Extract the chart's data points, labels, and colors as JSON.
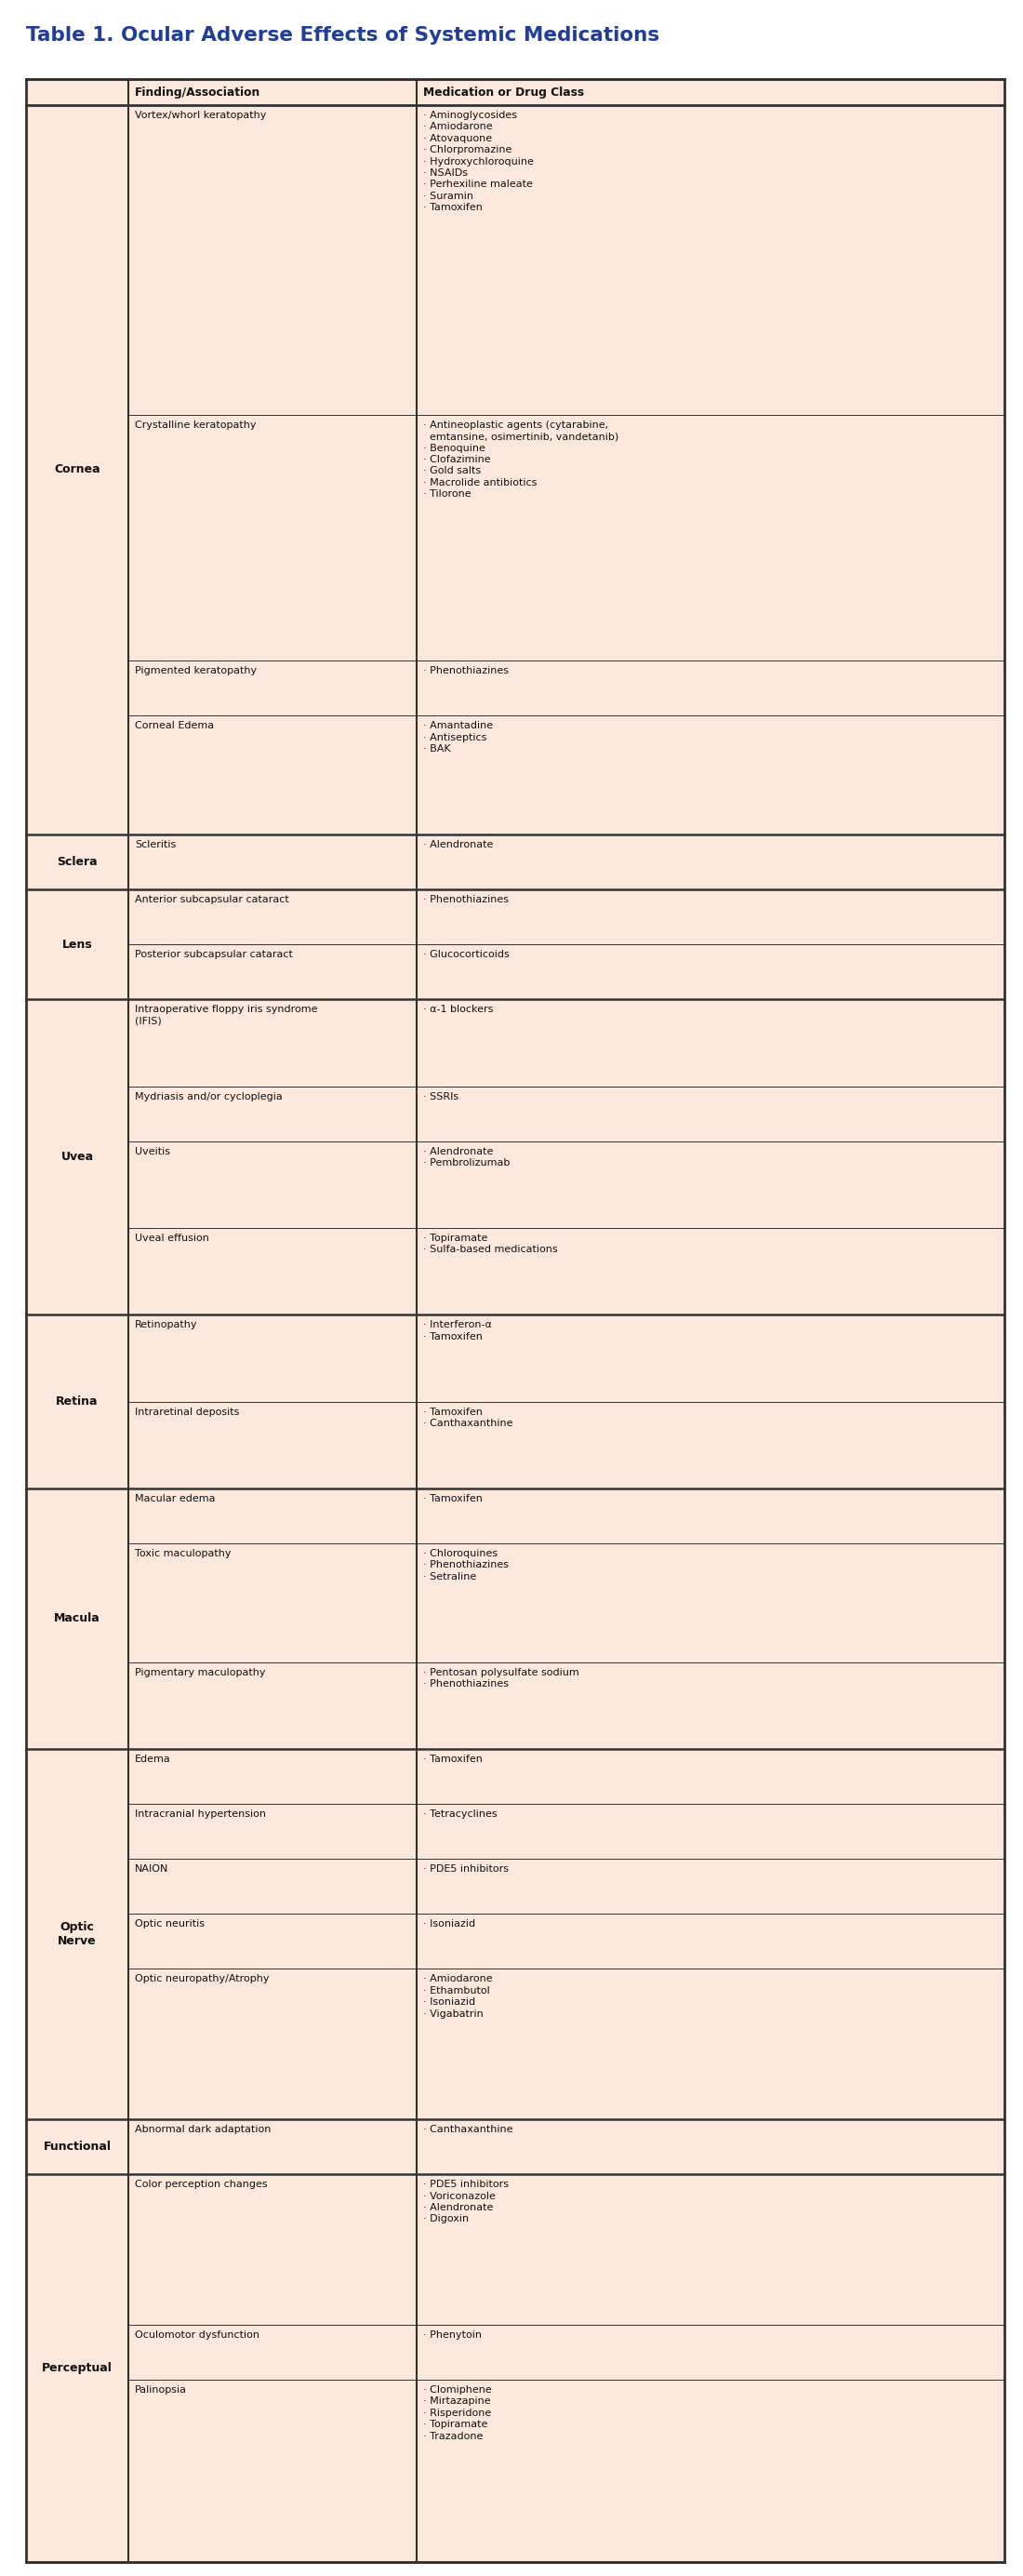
{
  "title": "Table 1. Ocular Adverse Effects of Systemic Medications",
  "title_color": "#1f3d99",
  "header": [
    "",
    "Finding/Association",
    "Medication or Drug Class"
  ],
  "bg_color": "#fce8dc",
  "border_color": "#333333",
  "text_color": "#111111",
  "rows": [
    {
      "category": "Cornea",
      "finding": "Vortex/whorl keratopathy",
      "medications": [
        "· Aminoglycosides",
        "· Amiodarone",
        "· Atovaquone",
        "· Chlorpromazine",
        "· Hydroxychloroquine",
        "· NSAIDs",
        "· Perhexiline maleate",
        "· Suramin",
        "· Tamoxifen"
      ],
      "show_category": true
    },
    {
      "category": "Cornea",
      "finding": "Crystalline keratopathy",
      "medications": [
        "· Antineoplastic agents (cytarabine,",
        "  emtansine, osimertinib, vandetanib)",
        "· Benoquine",
        "· Clofazimine",
        "· Gold salts",
        "· Macrolide antibiotics",
        "· Tilorone"
      ],
      "show_category": false
    },
    {
      "category": "Cornea",
      "finding": "Pigmented keratopathy",
      "medications": [
        "· Phenothiazines"
      ],
      "show_category": false
    },
    {
      "category": "Cornea",
      "finding": "Corneal Edema",
      "medications": [
        "· Amantadine",
        "· Antiseptics",
        "· BAK"
      ],
      "show_category": false
    },
    {
      "category": "Sclera",
      "finding": "Scleritis",
      "medications": [
        "· Alendronate"
      ],
      "show_category": true
    },
    {
      "category": "Lens",
      "finding": "Anterior subcapsular cataract",
      "medications": [
        "· Phenothiazines"
      ],
      "show_category": true
    },
    {
      "category": "Lens",
      "finding": "Posterior subcapsular cataract",
      "medications": [
        "· Glucocorticoids"
      ],
      "show_category": false
    },
    {
      "category": "Uvea",
      "finding": "Intraoperative floppy iris syndrome (IFIS)",
      "medications": [
        "· α-1 blockers"
      ],
      "show_category": true
    },
    {
      "category": "Uvea",
      "finding": "Mydriasis and/or cycloplegia",
      "medications": [
        "· SSRIs"
      ],
      "show_category": false
    },
    {
      "category": "Uvea",
      "finding": "Uveitis",
      "medications": [
        "· Alendronate",
        "· Pembrolizumab"
      ],
      "show_category": false
    },
    {
      "category": "Uvea",
      "finding": "Uveal effusion",
      "medications": [
        "· Topiramate",
        "· Sulfa-based medications"
      ],
      "show_category": false
    },
    {
      "category": "Retina",
      "finding": "Retinopathy",
      "medications": [
        "· Interferon-α",
        "· Tamoxifen"
      ],
      "show_category": true
    },
    {
      "category": "Retina",
      "finding": "Intraretinal deposits",
      "medications": [
        "· Tamoxifen",
        "· Canthaxanthine"
      ],
      "show_category": false
    },
    {
      "category": "Macula",
      "finding": "Macular edema",
      "medications": [
        "· Tamoxifen"
      ],
      "show_category": true
    },
    {
      "category": "Macula",
      "finding": "Toxic maculopathy",
      "medications": [
        "· Chloroquines",
        "· Phenothiazines",
        "· Setraline"
      ],
      "show_category": false
    },
    {
      "category": "Macula",
      "finding": "Pigmentary maculopathy",
      "medications": [
        "· Pentosan polysulfate sodium",
        "· Phenothiazines"
      ],
      "show_category": false
    },
    {
      "category": "Optic\nNerve",
      "finding": "Edema",
      "medications": [
        "· Tamoxifen"
      ],
      "show_category": true
    },
    {
      "category": "Optic\nNerve",
      "finding": "Intracranial hypertension",
      "medications": [
        "· Tetracyclines"
      ],
      "show_category": false
    },
    {
      "category": "Optic\nNerve",
      "finding": "NAION",
      "medications": [
        "· PDE5 inhibitors"
      ],
      "show_category": false
    },
    {
      "category": "Optic\nNerve",
      "finding": "Optic neuritis",
      "medications": [
        "· Isoniazid"
      ],
      "show_category": false
    },
    {
      "category": "Optic\nNerve",
      "finding": "Optic neuropathy/Atrophy",
      "medications": [
        "· Amiodarone",
        "· Ethambutol",
        "· Isoniazid",
        "· Vigabatrin"
      ],
      "show_category": false
    },
    {
      "category": "Functional",
      "finding": "Abnormal dark adaptation",
      "medications": [
        "· Canthaxanthine"
      ],
      "show_category": true
    },
    {
      "category": "Perceptual",
      "finding": "Color perception changes",
      "medications": [
        "· PDE5 inhibitors",
        "· Voriconazole",
        "· Alendronate",
        "· Digoxin"
      ],
      "show_category": true
    },
    {
      "category": "Perceptual",
      "finding": "Oculomotor dysfunction",
      "medications": [
        "· Phenytoin"
      ],
      "show_category": false
    },
    {
      "category": "Perceptual",
      "finding": "Palinopsia",
      "medications": [
        "· Clomiphene",
        "· Mirtazapine",
        "· Risperidone",
        "· Topiramate",
        "· Trazadone"
      ],
      "show_category": false
    }
  ]
}
